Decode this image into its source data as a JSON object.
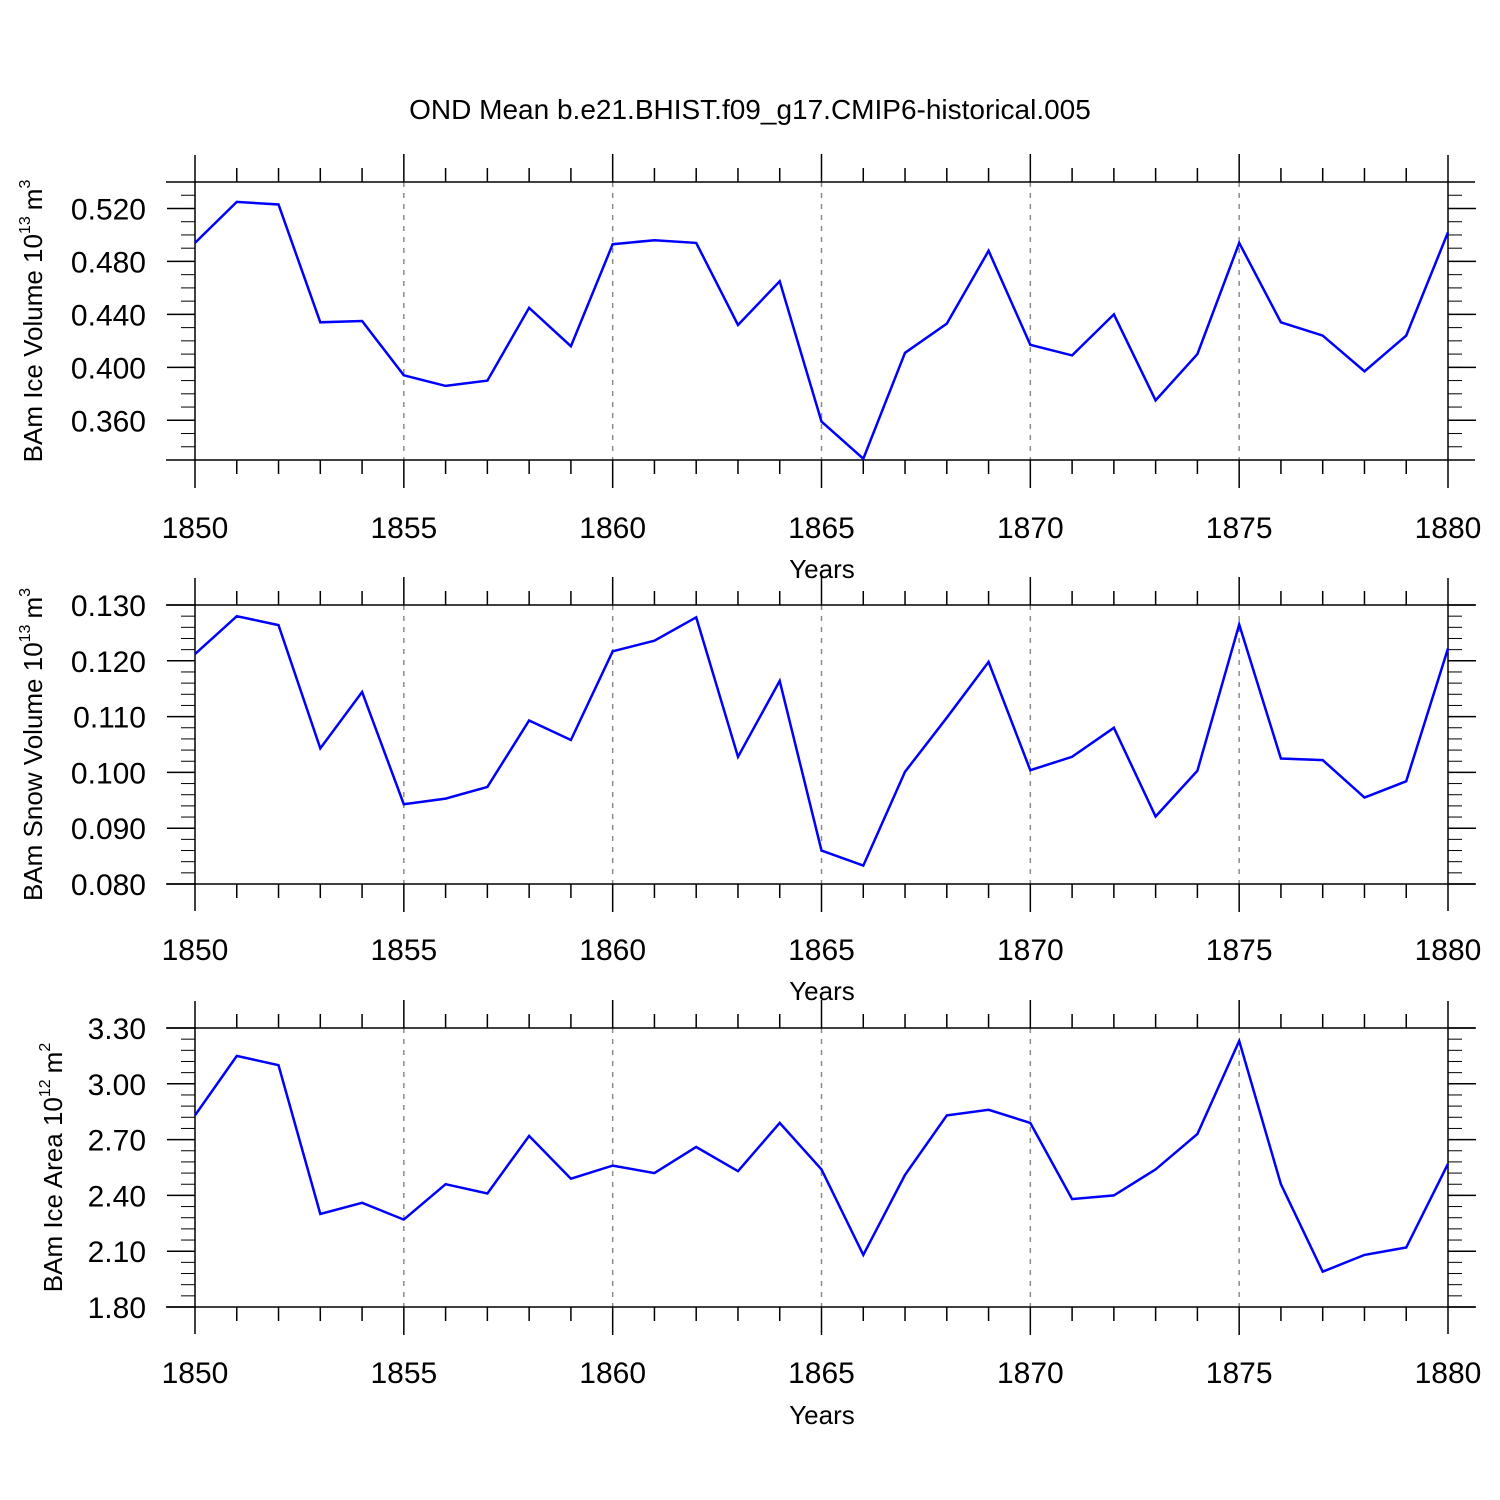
{
  "title": "OND Mean b.e21.BHIST.f09_g17.CMIP6-historical.005",
  "colors": {
    "series": "#0000ff",
    "axis": "#000000",
    "grid": "#8c8c8c",
    "background": "#ffffff"
  },
  "chart_data": [
    {
      "type": "line",
      "ylabel": {
        "text": "BAm Ice Volume 10",
        "exp": "13",
        "unit": "m",
        "unit_exp": "3"
      },
      "xlabel": "Years",
      "xlim": [
        1850,
        1880
      ],
      "ylim": [
        0.33,
        0.54
      ],
      "yticks": [
        0.36,
        0.4,
        0.44,
        0.48,
        0.52
      ],
      "yticklabels": [
        "0.360",
        "0.400",
        "0.440",
        "0.480",
        "0.520"
      ],
      "yminor": 0.01,
      "x": [
        1850,
        1851,
        1852,
        1853,
        1854,
        1855,
        1856,
        1857,
        1858,
        1859,
        1860,
        1861,
        1862,
        1863,
        1864,
        1865,
        1866,
        1867,
        1868,
        1869,
        1870,
        1871,
        1872,
        1873,
        1874,
        1875,
        1876,
        1877,
        1878,
        1879,
        1880
      ],
      "series": [
        {
          "name": "BAm Ice Volume",
          "values": [
            0.494,
            0.525,
            0.523,
            0.434,
            0.435,
            0.394,
            0.386,
            0.39,
            0.445,
            0.416,
            0.493,
            0.496,
            0.494,
            0.432,
            0.465,
            0.359,
            0.331,
            0.411,
            0.433,
            0.488,
            0.417,
            0.409,
            0.44,
            0.375,
            0.41,
            0.494,
            0.434,
            0.424,
            0.397,
            0.424,
            0.502
          ]
        }
      ]
    },
    {
      "type": "line",
      "ylabel": {
        "text": "BAm Snow Volume 10",
        "exp": "13",
        "unit": "m",
        "unit_exp": "3"
      },
      "xlabel": "Years",
      "xlim": [
        1850,
        1880
      ],
      "ylim": [
        0.08,
        0.13
      ],
      "yticks": [
        0.08,
        0.09,
        0.1,
        0.11,
        0.12,
        0.13
      ],
      "yticklabels": [
        "0.080",
        "0.090",
        "0.100",
        "0.110",
        "0.120",
        "0.130"
      ],
      "yminor": 0.002,
      "x": [
        1850,
        1851,
        1852,
        1853,
        1854,
        1855,
        1856,
        1857,
        1858,
        1859,
        1860,
        1861,
        1862,
        1863,
        1864,
        1865,
        1866,
        1867,
        1868,
        1869,
        1870,
        1871,
        1872,
        1873,
        1874,
        1875,
        1876,
        1877,
        1878,
        1879,
        1880
      ],
      "series": [
        {
          "name": "BAm Snow Volume",
          "values": [
            0.1212,
            0.128,
            0.1264,
            0.1043,
            0.1144,
            0.0943,
            0.0953,
            0.0974,
            0.1093,
            0.1058,
            0.1217,
            0.1236,
            0.1278,
            0.1028,
            0.1164,
            0.086,
            0.0833,
            0.1001,
            0.1098,
            0.1198,
            0.1004,
            0.1028,
            0.108,
            0.0921,
            0.1003,
            0.1265,
            0.1025,
            0.1022,
            0.0955,
            0.0984,
            0.1222
          ]
        }
      ]
    },
    {
      "type": "line",
      "ylabel": {
        "text": "BAm Ice Area 10",
        "exp": "12",
        "unit": "m",
        "unit_exp": "2"
      },
      "xlabel": "Years",
      "xlim": [
        1850,
        1880
      ],
      "ylim": [
        1.8,
        3.3
      ],
      "yticks": [
        1.8,
        2.1,
        2.4,
        2.7,
        3.0,
        3.3
      ],
      "yticklabels": [
        "1.80",
        "2.10",
        "2.40",
        "2.70",
        "3.00",
        "3.30"
      ],
      "yminor": 0.06,
      "x": [
        1850,
        1851,
        1852,
        1853,
        1854,
        1855,
        1856,
        1857,
        1858,
        1859,
        1860,
        1861,
        1862,
        1863,
        1864,
        1865,
        1866,
        1867,
        1868,
        1869,
        1870,
        1871,
        1872,
        1873,
        1874,
        1875,
        1876,
        1877,
        1878,
        1879,
        1880
      ],
      "series": [
        {
          "name": "BAm Ice Area",
          "values": [
            2.83,
            3.15,
            3.1,
            2.3,
            2.36,
            2.27,
            2.46,
            2.41,
            2.72,
            2.49,
            2.56,
            2.52,
            2.66,
            2.53,
            2.79,
            2.54,
            2.08,
            2.51,
            2.83,
            2.86,
            2.79,
            2.38,
            2.4,
            2.54,
            2.73,
            3.23,
            2.46,
            1.99,
            2.08,
            2.12,
            2.57
          ]
        }
      ]
    }
  ],
  "xticks": [
    1850,
    1855,
    1860,
    1865,
    1870,
    1875,
    1880
  ],
  "xticklabels": [
    "1850",
    "1855",
    "1860",
    "1865",
    "1870",
    "1875",
    "1880"
  ]
}
